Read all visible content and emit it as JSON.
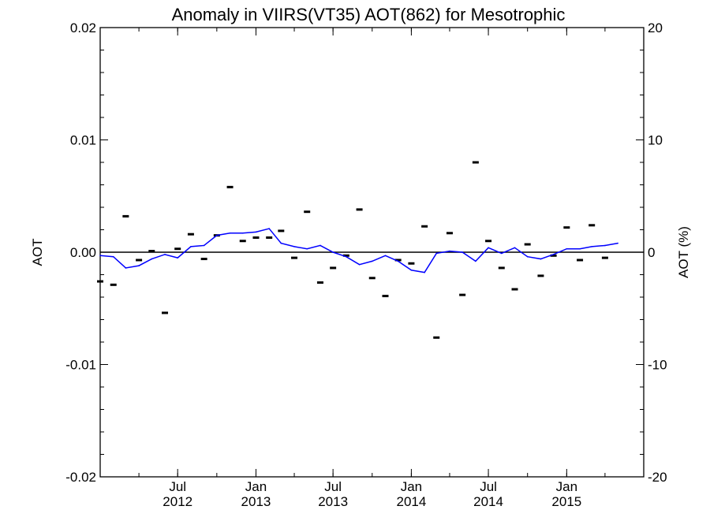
{
  "chart_data": {
    "type": "line",
    "title": "Anomaly in VIIRS(VT35) AOT(862) for Mesotrophic",
    "ylabel": "AOT",
    "ylabel_right": "AOT (%)",
    "xlabel": "",
    "ylim": [
      -0.02,
      0.02
    ],
    "ylim_right": [
      -20,
      20
    ],
    "xlim": [
      "2012-01-16",
      "2015-07-16"
    ],
    "yticks": [
      "0.02",
      "0.01",
      "0.00",
      "-0.01",
      "-0.02"
    ],
    "yticks_right": [
      "20",
      "10",
      "0",
      "-10",
      "-20"
    ],
    "xticks": [
      {
        "month": "Jul",
        "year": "2012",
        "date": "2012-07-16"
      },
      {
        "month": "Jan",
        "year": "2013",
        "date": "2013-01-16"
      },
      {
        "month": "Jul",
        "year": "2013",
        "date": "2013-07-16"
      },
      {
        "month": "Jan",
        "year": "2014",
        "date": "2014-01-16"
      },
      {
        "month": "Jul",
        "year": "2014",
        "date": "2014-07-16"
      },
      {
        "month": "Jan",
        "year": "2015",
        "date": "2015-01-16"
      }
    ],
    "zero_line": 0,
    "grid": false,
    "series": [
      {
        "style": "markers",
        "color": "#000000",
        "points": [
          {
            "x": "2012-01-16",
            "y": -0.0026
          },
          {
            "x": "2012-02-16",
            "y": -0.0029
          },
          {
            "x": "2012-03-16",
            "y": 0.0032
          },
          {
            "x": "2012-04-16",
            "y": -0.0007
          },
          {
            "x": "2012-05-16",
            "y": 0.0001
          },
          {
            "x": "2012-06-16",
            "y": -0.0054
          },
          {
            "x": "2012-07-16",
            "y": 0.0003
          },
          {
            "x": "2012-08-16",
            "y": 0.0016
          },
          {
            "x": "2012-09-16",
            "y": -0.0006
          },
          {
            "x": "2012-10-16",
            "y": 0.0015
          },
          {
            "x": "2012-11-16",
            "y": 0.0058
          },
          {
            "x": "2012-12-16",
            "y": 0.001
          },
          {
            "x": "2013-01-16",
            "y": 0.0013
          },
          {
            "x": "2013-02-16",
            "y": 0.0013
          },
          {
            "x": "2013-03-16",
            "y": 0.0019
          },
          {
            "x": "2013-04-16",
            "y": -0.0005
          },
          {
            "x": "2013-05-16",
            "y": 0.0036
          },
          {
            "x": "2013-06-16",
            "y": -0.0027
          },
          {
            "x": "2013-07-16",
            "y": -0.0014
          },
          {
            "x": "2013-08-16",
            "y": -0.0003
          },
          {
            "x": "2013-09-16",
            "y": 0.0038
          },
          {
            "x": "2013-10-16",
            "y": -0.0023
          },
          {
            "x": "2013-11-16",
            "y": -0.0039
          },
          {
            "x": "2013-12-16",
            "y": -0.0007
          },
          {
            "x": "2014-01-16",
            "y": -0.001
          },
          {
            "x": "2014-02-16",
            "y": 0.0023
          },
          {
            "x": "2014-03-16",
            "y": -0.0076
          },
          {
            "x": "2014-04-16",
            "y": 0.0017
          },
          {
            "x": "2014-05-16",
            "y": -0.0038
          },
          {
            "x": "2014-06-16",
            "y": 0.008
          },
          {
            "x": "2014-07-16",
            "y": 0.001
          },
          {
            "x": "2014-08-16",
            "y": -0.0014
          },
          {
            "x": "2014-09-16",
            "y": -0.0033
          },
          {
            "x": "2014-10-16",
            "y": 0.0007
          },
          {
            "x": "2014-11-16",
            "y": -0.0021
          },
          {
            "x": "2014-12-16",
            "y": -0.0003
          },
          {
            "x": "2015-01-16",
            "y": 0.0022
          },
          {
            "x": "2015-02-16",
            "y": -0.0007
          },
          {
            "x": "2015-03-16",
            "y": 0.0024
          },
          {
            "x": "2015-04-16",
            "y": -0.0005
          }
        ]
      },
      {
        "style": "line",
        "color": "#0000ff",
        "points": [
          {
            "x": "2012-01-16",
            "y": -0.0003
          },
          {
            "x": "2012-02-16",
            "y": -0.0004
          },
          {
            "x": "2012-03-16",
            "y": -0.0014
          },
          {
            "x": "2012-04-16",
            "y": -0.0012
          },
          {
            "x": "2012-05-16",
            "y": -0.0006
          },
          {
            "x": "2012-06-16",
            "y": -0.0002
          },
          {
            "x": "2012-07-16",
            "y": -0.0005
          },
          {
            "x": "2012-08-16",
            "y": 0.0005
          },
          {
            "x": "2012-09-16",
            "y": 0.0006
          },
          {
            "x": "2012-10-16",
            "y": 0.0015
          },
          {
            "x": "2012-11-16",
            "y": 0.0017
          },
          {
            "x": "2012-12-16",
            "y": 0.0017
          },
          {
            "x": "2013-01-16",
            "y": 0.0018
          },
          {
            "x": "2013-02-16",
            "y": 0.0021
          },
          {
            "x": "2013-03-16",
            "y": 0.0008
          },
          {
            "x": "2013-04-16",
            "y": 0.0005
          },
          {
            "x": "2013-05-16",
            "y": 0.0003
          },
          {
            "x": "2013-06-16",
            "y": 0.0006
          },
          {
            "x": "2013-07-16",
            "y": 0.0
          },
          {
            "x": "2013-08-16",
            "y": -0.0004
          },
          {
            "x": "2013-09-16",
            "y": -0.0011
          },
          {
            "x": "2013-10-16",
            "y": -0.0008
          },
          {
            "x": "2013-11-16",
            "y": -0.0003
          },
          {
            "x": "2013-12-16",
            "y": -0.0008
          },
          {
            "x": "2014-01-16",
            "y": -0.0016
          },
          {
            "x": "2014-02-16",
            "y": -0.0018
          },
          {
            "x": "2014-03-16",
            "y": -0.0001
          },
          {
            "x": "2014-04-16",
            "y": 0.0001
          },
          {
            "x": "2014-05-16",
            "y": 0.0
          },
          {
            "x": "2014-06-16",
            "y": -0.0008
          },
          {
            "x": "2014-07-16",
            "y": 0.0004
          },
          {
            "x": "2014-08-16",
            "y": -0.0001
          },
          {
            "x": "2014-09-16",
            "y": 0.0004
          },
          {
            "x": "2014-10-16",
            "y": -0.0004
          },
          {
            "x": "2014-11-16",
            "y": -0.0006
          },
          {
            "x": "2014-12-16",
            "y": -0.0002
          },
          {
            "x": "2015-01-16",
            "y": 0.0003
          },
          {
            "x": "2015-02-16",
            "y": 0.0003
          },
          {
            "x": "2015-03-16",
            "y": 0.0005
          },
          {
            "x": "2015-04-16",
            "y": 0.0006
          },
          {
            "x": "2015-05-16",
            "y": 0.0008
          }
        ]
      }
    ]
  }
}
